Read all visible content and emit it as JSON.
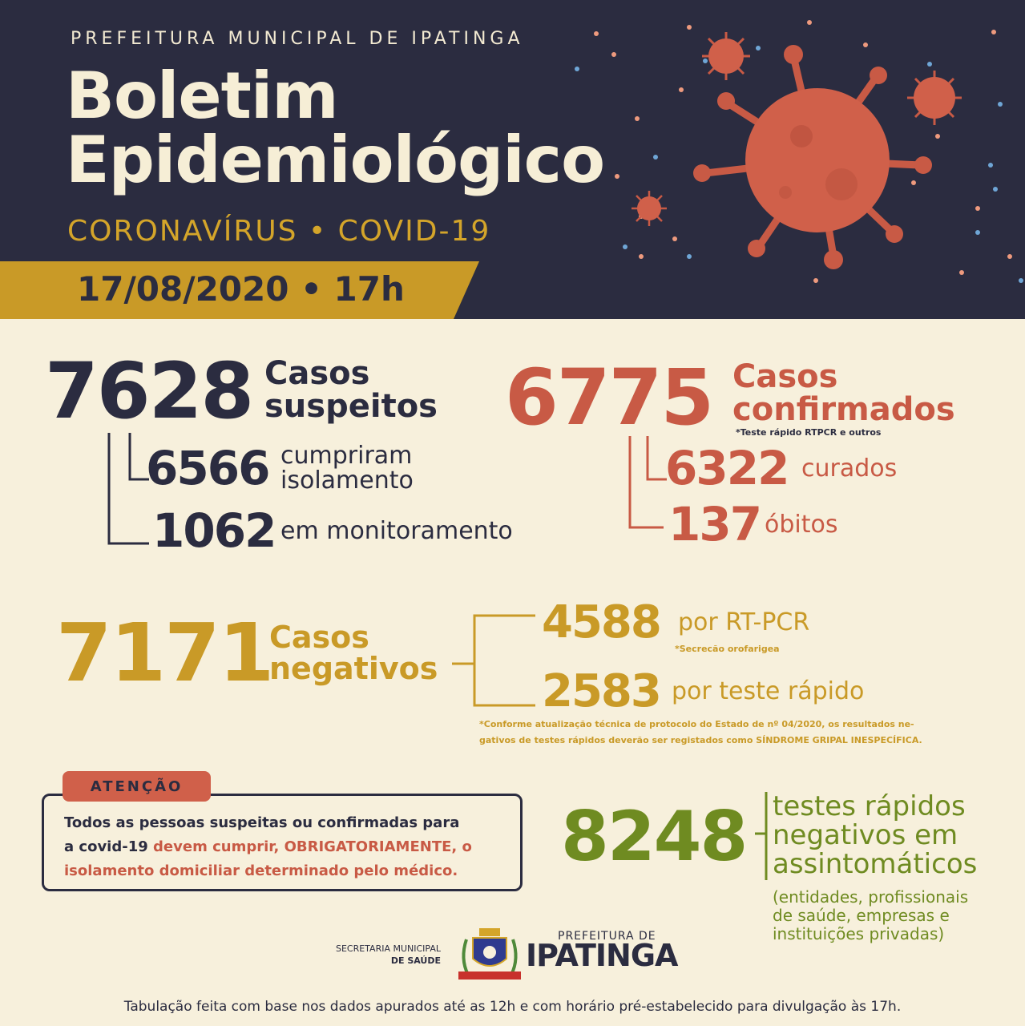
{
  "header": {
    "org": "PREFEITURA MUNICIPAL DE IPATINGA",
    "title_line1": "Boletim",
    "title_line2": "Epidemiológico",
    "subtitle": "CORONAVÍRUS • COVID-19",
    "date": "17/08/2020 • 17h"
  },
  "suspeitos": {
    "total": "7628",
    "label_line1": "Casos",
    "label_line2": "suspeitos",
    "isolamento_value": "6566",
    "isolamento_line1": "cumpriram",
    "isolamento_line2": "isolamento",
    "monitoramento_value": "1062",
    "monitoramento_label": "em monitoramento"
  },
  "confirmados": {
    "total": "6775",
    "label_line1": "Casos",
    "label_line2": "confirmados",
    "note": "*Teste rápido RTPCR e outros",
    "curados_value": "6322",
    "curados_label": "curados",
    "obitos_value": "137",
    "obitos_label": "óbitos"
  },
  "negativos": {
    "total": "7171",
    "label_line1": "Casos",
    "label_line2": "negativos",
    "rtpcr_value": "4588",
    "rtpcr_label": "por RT-PCR",
    "rtpcr_note": "*Secrecão orofarigea",
    "rapido_value": "2583",
    "rapido_label": "por teste rápido",
    "footnote_line1": "*Conforme atualização técnica de protocolo do Estado de nº 04/2020, os resultados ne-",
    "footnote_line2": "gativos de testes rápidos deverão ser registados como SÍNDROME GRIPAL INESPECÍFICA."
  },
  "atencao": {
    "tag": "ATENÇÃO",
    "line1": "Todos as pessoas suspeitas ou confirmadas para",
    "line2_a": "a covid-19 ",
    "line2_b": "devem cumprir, OBRIGATORIAMENTE, o",
    "line3": "isolamento domiciliar determinado pelo médico."
  },
  "assintomaticos": {
    "total": "8248",
    "label_line1": "testes rápidos",
    "label_line2": "negativos em",
    "label_line3": "assintomáticos",
    "note_line1": "(entidades, profissionais",
    "note_line2": "de saúde, empresas e",
    "note_line3": "instituições privadas)"
  },
  "logos": {
    "secretaria_line1": "SECRETARIA MUNICIPAL",
    "secretaria_line2": "DE SAÚDE",
    "prefeitura_small": "PREFEITURA DE",
    "prefeitura_big": "IPATINGA"
  },
  "footer": "Tabulação feita com base nos dados apurados até as 12h e com horário pré-estabelecido para divulgação às 17h.",
  "colors": {
    "navy": "#2b2c40",
    "cream": "#f7f0dc",
    "red": "#c85a45",
    "gold": "#c99a27",
    "green": "#6f8b21"
  }
}
